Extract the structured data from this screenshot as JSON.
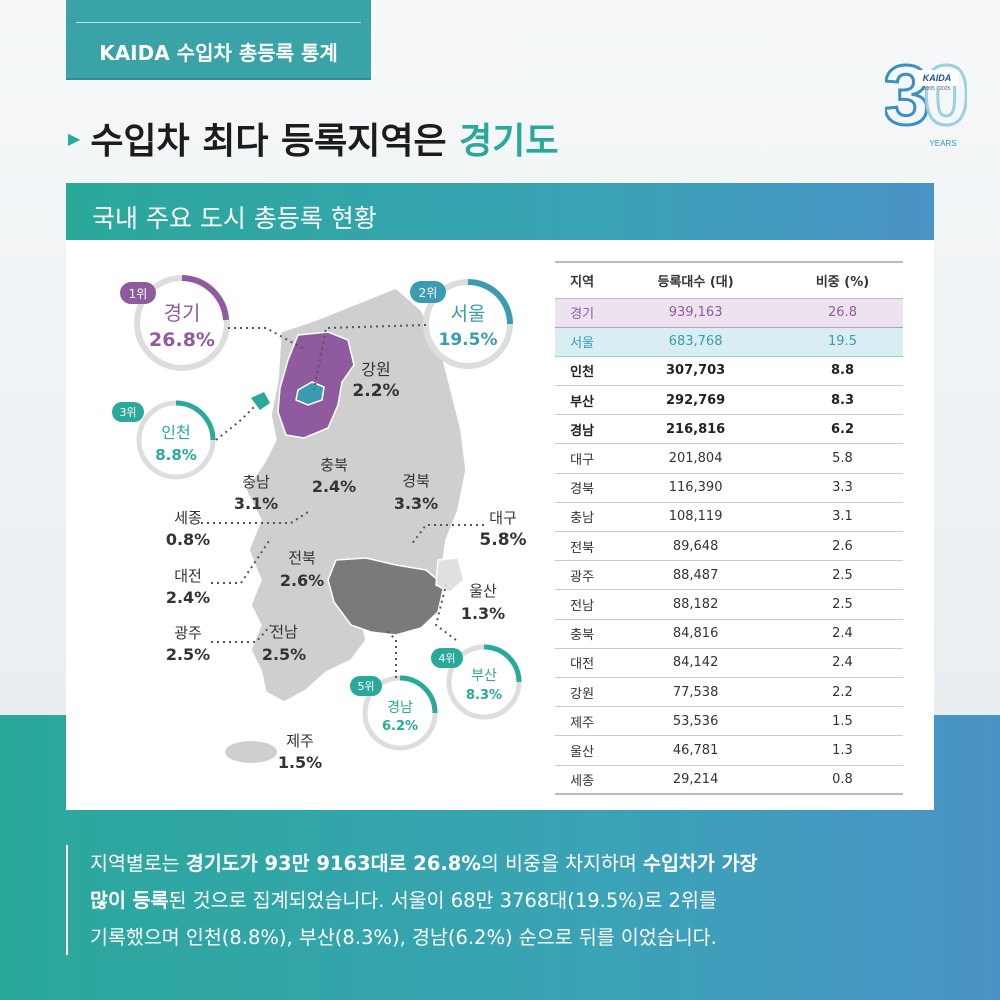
{
  "header": {
    "tag": "KAIDA 수입차 총등록 통계",
    "logo": {
      "num_left": "3",
      "num_right": "0",
      "brand": "KAIDA",
      "years_range": "1995 · 2025",
      "years_label": "YEARS"
    },
    "title_pre": "수입차 최다 등록지역은 ",
    "title_highlight": "경기도",
    "section": "국내 주요 도시 총등록 현황"
  },
  "colors": {
    "teal": "#2aa89a",
    "purple": "#8f5b9e",
    "blue": "#3b9bb0",
    "map_gray": "#cfcfcf",
    "map_dark": "#7a7a7a"
  },
  "map": {
    "ranks": [
      {
        "rank": "1위",
        "name": "경기",
        "pct": "26.8%"
      },
      {
        "rank": "2위",
        "name": "서울",
        "pct": "19.5%"
      },
      {
        "rank": "3위",
        "name": "인천",
        "pct": "8.8%"
      },
      {
        "rank": "4위",
        "name": "부산",
        "pct": "8.3%"
      },
      {
        "rank": "5위",
        "name": "경남",
        "pct": "6.2%"
      }
    ],
    "labels": [
      {
        "name": "강원",
        "pct": "2.2%"
      },
      {
        "name": "충북",
        "pct": "2.4%"
      },
      {
        "name": "충남",
        "pct": "3.1%"
      },
      {
        "name": "경북",
        "pct": "3.3%"
      },
      {
        "name": "세종",
        "pct": "0.8%"
      },
      {
        "name": "대구",
        "pct": "5.8%"
      },
      {
        "name": "전북",
        "pct": "2.6%"
      },
      {
        "name": "대전",
        "pct": "2.4%"
      },
      {
        "name": "울산",
        "pct": "1.3%"
      },
      {
        "name": "광주",
        "pct": "2.5%"
      },
      {
        "name": "전남",
        "pct": "2.5%"
      },
      {
        "name": "제주",
        "pct": "1.5%"
      }
    ]
  },
  "table": {
    "headers": [
      "지역",
      "등록대수 (대)",
      "비중 (%)"
    ],
    "rows": [
      [
        "경기",
        "939,163",
        "26.8"
      ],
      [
        "서울",
        "683,768",
        "19.5"
      ],
      [
        "인천",
        "307,703",
        "8.8"
      ],
      [
        "부산",
        "292,769",
        "8.3"
      ],
      [
        "경남",
        "216,816",
        "6.2"
      ],
      [
        "대구",
        "201,804",
        "5.8"
      ],
      [
        "경북",
        "116,390",
        "3.3"
      ],
      [
        "충남",
        "108,119",
        "3.1"
      ],
      [
        "전북",
        "89,648",
        "2.6"
      ],
      [
        "광주",
        "88,487",
        "2.5"
      ],
      [
        "전남",
        "88,182",
        "2.5"
      ],
      [
        "충북",
        "84,816",
        "2.4"
      ],
      [
        "대전",
        "84,142",
        "2.4"
      ],
      [
        "강원",
        "77,538",
        "2.2"
      ],
      [
        "제주",
        "53,536",
        "1.5"
      ],
      [
        "울산",
        "46,781",
        "1.3"
      ],
      [
        "세종",
        "29,214",
        "0.8"
      ]
    ]
  },
  "description": {
    "l1a": "지역별로는 ",
    "l1b": "경기도가 93만 9163대로 26.8%",
    "l1c": "의 비중을 차지하며 ",
    "l1d": "수입차가 가장",
    "l2a": "많이 등록",
    "l2b": "된 것으로 집계되었습니다. 서울이 68만 3768대(19.5%)로 2위를",
    "l3": "기록했으며 인천(8.8%), 부산(8.3%), 경남(6.2%) 순으로 뒤를 이었습니다."
  }
}
